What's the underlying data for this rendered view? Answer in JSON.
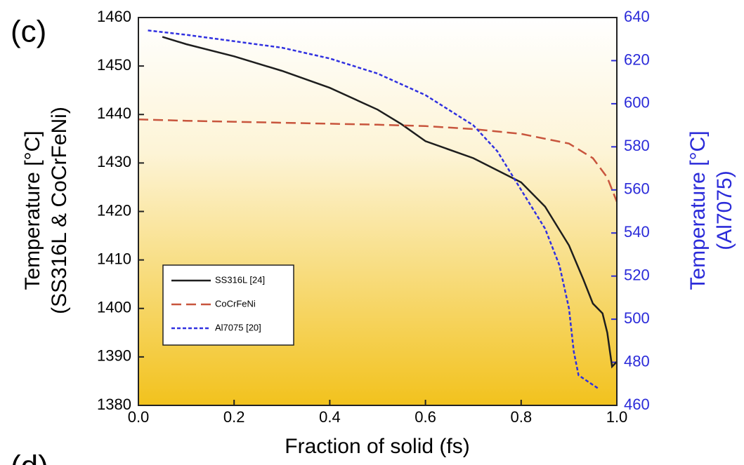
{
  "chart_data": {
    "type": "line",
    "panel_label": "(c)",
    "next_panel_label": "(d)",
    "xlabel": "Fraction of solid (fs)",
    "ylabel": [
      "Temperature  [°C]",
      "(SS316L & CoCrFeNi)"
    ],
    "y2label": [
      "Temperature [°C]",
      "(Al7075)"
    ],
    "y2color": "#2b2bd9",
    "xlim": [
      0,
      1
    ],
    "xticks": [
      {
        "value": 0,
        "label": "0.0"
      },
      0.2,
      0.4,
      0.6,
      0.8,
      {
        "value": 1,
        "label": "1.0"
      }
    ],
    "ylim": [
      1380,
      1460
    ],
    "yticks": [
      1380,
      1390,
      1400,
      1410,
      1420,
      1430,
      1440,
      1450,
      1460
    ],
    "y2lim": [
      460,
      640
    ],
    "y2ticks": [
      460,
      480,
      500,
      520,
      540,
      560,
      580,
      600,
      620,
      640
    ],
    "series": [
      {
        "name": "SS316L [24]",
        "color": "#1e1e1e",
        "dash": "solid",
        "x": [
          0.05,
          0.1,
          0.2,
          0.3,
          0.4,
          0.5,
          0.55,
          0.6,
          0.7,
          0.8,
          0.85,
          0.9,
          0.93,
          0.95,
          0.97,
          0.98,
          0.99,
          1.0
        ],
        "values": [
          1456,
          1454.5,
          1452,
          1449,
          1445.5,
          1441,
          1438,
          1434.5,
          1431,
          1426,
          1421,
          1413,
          1406,
          1401,
          1399,
          1395,
          1388,
          1389
        ]
      },
      {
        "name": "CoCrFeNi",
        "color": "#c8553d",
        "dash": "dashed",
        "x": [
          0,
          0.1,
          0.2,
          0.3,
          0.4,
          0.5,
          0.6,
          0.7,
          0.8,
          0.9,
          0.95,
          0.98,
          1.0
        ],
        "values": [
          1439,
          1438.7,
          1438.5,
          1438.3,
          1438.1,
          1437.9,
          1437.6,
          1437,
          1436,
          1434,
          1431,
          1427,
          1422
        ]
      },
      {
        "name": "Al7075 [20]",
        "color": "#3030e0",
        "dash": "dotted",
        "axis": "y2",
        "x": [
          0.02,
          0.1,
          0.2,
          0.3,
          0.4,
          0.5,
          0.6,
          0.7,
          0.75,
          0.8,
          0.85,
          0.88,
          0.9,
          0.91,
          0.92,
          0.96
        ],
        "values": [
          634,
          632,
          629,
          626,
          621,
          614,
          604,
          590,
          578,
          560,
          542,
          525,
          505,
          485,
          474,
          468
        ]
      }
    ]
  }
}
